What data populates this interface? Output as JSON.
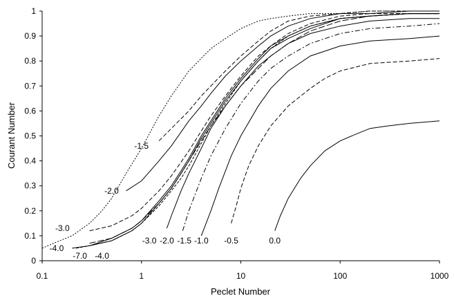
{
  "chart_data": {
    "type": "line",
    "title": "",
    "xlabel": "Peclet Number",
    "ylabel": "Courant Number",
    "x_scale": "log",
    "xlim": [
      0.1,
      1000
    ],
    "ylim": [
      0,
      1
    ],
    "x_ticks": [
      "0.1",
      "1",
      "10",
      "100",
      "1000"
    ],
    "y_ticks": [
      "0",
      "0.1",
      "0.2",
      "0.3",
      "0.4",
      "0.5",
      "0.6",
      "0.7",
      "0.8",
      "0.9",
      "1"
    ],
    "grid": false,
    "legend": "none",
    "series": [
      {
        "name": "0.0",
        "style": "solid",
        "label_at": [
          22,
          0.08
        ],
        "x": [
          22,
          25,
          30,
          40,
          50,
          70,
          100,
          150,
          200,
          300,
          500,
          1000
        ],
        "y": [
          0.12,
          0.18,
          0.25,
          0.33,
          0.38,
          0.44,
          0.48,
          0.51,
          0.53,
          0.54,
          0.55,
          0.56
        ]
      },
      {
        "name": "-0.5",
        "style": "dashed",
        "label_at": [
          8,
          0.08
        ],
        "x": [
          8,
          9,
          10,
          12,
          15,
          20,
          30,
          50,
          70,
          100,
          200,
          500,
          1000
        ],
        "y": [
          0.15,
          0.22,
          0.29,
          0.38,
          0.46,
          0.54,
          0.62,
          0.69,
          0.73,
          0.76,
          0.79,
          0.8,
          0.81
        ]
      },
      {
        "name": "-1.0",
        "style": "solid",
        "label_at": [
          4,
          0.08
        ],
        "x": [
          4,
          5,
          6,
          8,
          10,
          15,
          20,
          30,
          50,
          100,
          200,
          500,
          1000
        ],
        "y": [
          0.1,
          0.2,
          0.29,
          0.42,
          0.5,
          0.62,
          0.69,
          0.76,
          0.82,
          0.86,
          0.88,
          0.89,
          0.9
        ]
      },
      {
        "name": "-1.5",
        "style": "dash-dot",
        "label_at": [
          2.7,
          0.08
        ],
        "x": [
          2.6,
          3,
          4,
          5,
          7,
          10,
          15,
          20,
          30,
          50,
          100,
          200,
          500,
          1000
        ],
        "y": [
          0.12,
          0.2,
          0.33,
          0.42,
          0.53,
          0.63,
          0.72,
          0.77,
          0.82,
          0.87,
          0.91,
          0.93,
          0.94,
          0.95
        ]
      },
      {
        "name": "-2.0",
        "style": "solid",
        "label_at": [
          1.8,
          0.08
        ],
        "x": [
          1.8,
          2,
          2.5,
          3,
          4,
          5,
          7,
          10,
          15,
          20,
          30,
          50,
          100,
          200,
          500,
          1000
        ],
        "y": [
          0.13,
          0.18,
          0.28,
          0.35,
          0.45,
          0.53,
          0.62,
          0.7,
          0.78,
          0.82,
          0.87,
          0.91,
          0.94,
          0.96,
          0.97,
          0.97
        ]
      },
      {
        "name": "-3.0",
        "style": "long-dash",
        "label_at": [
          1.2,
          0.08
        ],
        "x": [
          0.3,
          0.5,
          0.8,
          1,
          1.5,
          2,
          2.5,
          3,
          4,
          5,
          7,
          10,
          15,
          20,
          30,
          50,
          100,
          200,
          500,
          1000
        ],
        "y": [
          0.07,
          0.09,
          0.13,
          0.16,
          0.23,
          0.29,
          0.35,
          0.4,
          0.48,
          0.54,
          0.62,
          0.7,
          0.77,
          0.82,
          0.87,
          0.92,
          0.96,
          0.98,
          0.99,
          0.99
        ]
      },
      {
        "name": "-4.0",
        "style": "solid",
        "label_at": [
          0.4,
          0.02
        ],
        "x": [
          0.3,
          0.5,
          0.8,
          1,
          1.5,
          2,
          2.5,
          3,
          4,
          5,
          7,
          10,
          15,
          20,
          30,
          50,
          100,
          200,
          500,
          1000
        ],
        "y": [
          0.06,
          0.08,
          0.12,
          0.15,
          0.23,
          0.29,
          0.35,
          0.4,
          0.49,
          0.55,
          0.64,
          0.72,
          0.8,
          0.85,
          0.89,
          0.93,
          0.97,
          0.98,
          0.99,
          0.99
        ]
      },
      {
        "name": "-7.0",
        "style": "short-dash",
        "label_at": [
          0.24,
          0.02
        ],
        "x": [
          0.22,
          0.3,
          0.5,
          0.8,
          1,
          1.5,
          2,
          2.5,
          3,
          4,
          5,
          7,
          10,
          15,
          20,
          30,
          50,
          100,
          200,
          500,
          1000
        ],
        "y": [
          0.05,
          0.06,
          0.08,
          0.12,
          0.15,
          0.22,
          0.28,
          0.33,
          0.38,
          0.47,
          0.54,
          0.63,
          0.72,
          0.8,
          0.85,
          0.9,
          0.94,
          0.97,
          0.98,
          0.99,
          0.99
        ]
      },
      {
        "name": "-4.0",
        "style": "solid",
        "label_at": [
          0.14,
          0.05
        ],
        "x": [
          0.2,
          0.3,
          0.5,
          0.8,
          1,
          1.5,
          2,
          2.5,
          3,
          4,
          5,
          7,
          10,
          15,
          20,
          30,
          50,
          100,
          200,
          500,
          1000
        ],
        "y": [
          0.05,
          0.06,
          0.09,
          0.13,
          0.16,
          0.24,
          0.3,
          0.36,
          0.41,
          0.5,
          0.56,
          0.65,
          0.73,
          0.81,
          0.86,
          0.9,
          0.94,
          0.97,
          0.98,
          0.99,
          0.99
        ]
      },
      {
        "name": "-3.0",
        "style": "dashed",
        "label_at": [
          0.16,
          0.13
        ],
        "x": [
          0.3,
          0.5,
          0.8,
          1,
          1.5,
          2,
          3,
          4,
          5,
          7,
          10,
          15,
          20,
          30,
          50,
          100,
          200,
          500,
          1000
        ],
        "y": [
          0.12,
          0.14,
          0.18,
          0.21,
          0.28,
          0.34,
          0.44,
          0.52,
          0.58,
          0.66,
          0.74,
          0.82,
          0.86,
          0.91,
          0.95,
          0.98,
          0.99,
          0.99,
          0.99
        ]
      },
      {
        "name": "-2.0",
        "style": "solid",
        "label_at": [
          0.5,
          0.28
        ],
        "x": [
          0.7,
          1,
          1.5,
          2,
          3,
          4,
          5,
          7,
          10,
          15,
          20,
          30,
          50,
          100,
          200,
          500,
          1000
        ],
        "y": [
          0.28,
          0.32,
          0.4,
          0.46,
          0.56,
          0.62,
          0.67,
          0.74,
          0.8,
          0.86,
          0.9,
          0.94,
          0.97,
          0.99,
          0.99,
          1.0,
          1.0
        ]
      },
      {
        "name": "-1.5",
        "style": "dashed",
        "label_at": [
          1.0,
          0.46
        ],
        "x": [
          1.5,
          2,
          3,
          4,
          5,
          7,
          10,
          15,
          20,
          30,
          50,
          100,
          200,
          500,
          1000
        ],
        "y": [
          0.48,
          0.53,
          0.6,
          0.66,
          0.7,
          0.76,
          0.82,
          0.88,
          0.92,
          0.96,
          0.98,
          0.99,
          1.0,
          1.0,
          1.0
        ]
      },
      {
        "name": "",
        "style": "dotted",
        "label_at": null,
        "x": [
          0.1,
          0.15,
          0.2,
          0.3,
          0.4,
          0.5,
          0.7,
          1,
          1.5,
          2,
          3,
          5,
          7,
          10,
          15,
          20,
          30,
          50,
          100,
          200,
          500,
          1000
        ],
        "y": [
          0.05,
          0.08,
          0.1,
          0.15,
          0.2,
          0.25,
          0.35,
          0.45,
          0.58,
          0.66,
          0.76,
          0.85,
          0.89,
          0.93,
          0.96,
          0.97,
          0.98,
          0.99,
          0.99,
          1.0,
          1.0,
          1.0
        ]
      }
    ]
  }
}
